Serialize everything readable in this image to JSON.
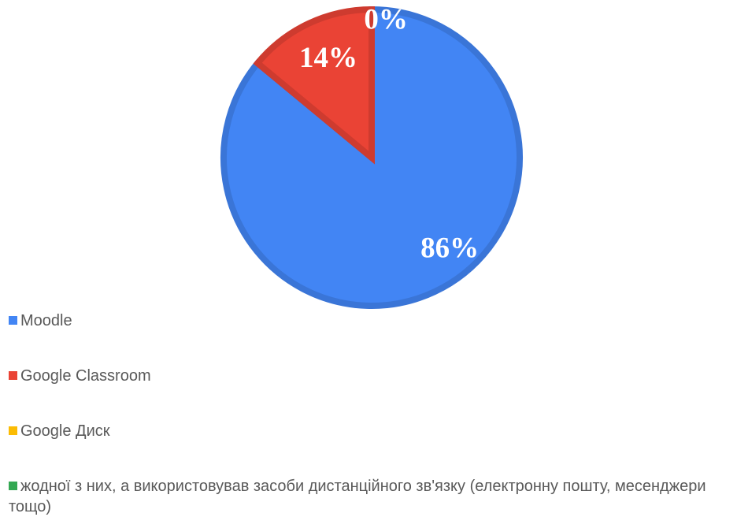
{
  "chart_data": {
    "type": "pie",
    "title": "",
    "slices": [
      {
        "name": "Moodle",
        "value": 86,
        "label": "86%",
        "color": "#4285f4"
      },
      {
        "name": "Google Classroom",
        "value": 14,
        "label": "14%",
        "color": "#ea4335"
      },
      {
        "name": "Google Диск",
        "value": 0,
        "label": "0%",
        "color": "#fbbc04"
      },
      {
        "name": "жодної з них, а використовував засоби дистанційного зв'язку (електронну пошту, месенджери тощо)",
        "value": 0,
        "label": "",
        "color": "#34a853"
      }
    ],
    "legend_position": "bottom-left"
  }
}
